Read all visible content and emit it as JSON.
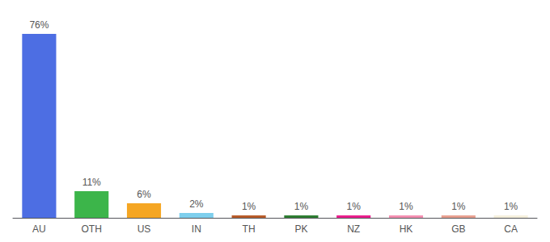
{
  "chart_data": {
    "type": "bar",
    "categories": [
      "AU",
      "OTH",
      "US",
      "IN",
      "TH",
      "PK",
      "NZ",
      "HK",
      "GB",
      "CA"
    ],
    "values": [
      76,
      11,
      6,
      2,
      1,
      1,
      1,
      1,
      1,
      1
    ],
    "value_labels": [
      "76%",
      "11%",
      "6%",
      "2%",
      "1%",
      "1%",
      "1%",
      "1%",
      "1%",
      "1%"
    ],
    "colors": [
      "#4d6ee3",
      "#3cb54a",
      "#f5a623",
      "#7ecfed",
      "#b85c2a",
      "#2e7d32",
      "#e91e8c",
      "#f48fb1",
      "#e8a090",
      "#f5f0dc"
    ],
    "ylim": [
      0,
      82
    ],
    "grid": false,
    "data_labels": true,
    "tick_labels": "x"
  }
}
